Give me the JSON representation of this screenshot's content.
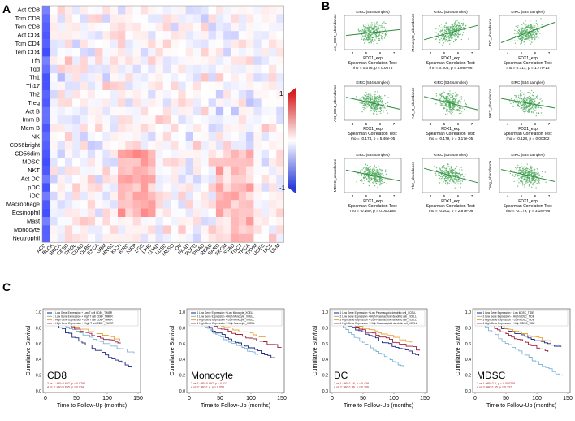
{
  "panels": {
    "a": "A",
    "b": "B",
    "c": "C"
  },
  "colors": {
    "blue": "#2a3cd8",
    "red": "#d62020",
    "green": "#2e8b3e",
    "scatter": "#4aa85a"
  },
  "heatmap": {
    "rows": [
      "Act CD8",
      "Tcm CD8",
      "Tem CD8",
      "Act CD4",
      "Tcm CD4",
      "Tem CD4",
      "Tfh",
      "Tgd",
      "Th1",
      "Th17",
      "Th2",
      "Treg",
      "Act B",
      "Imm B",
      "Mem B",
      "NK",
      "CD56bright",
      "CD56dim",
      "MDSC",
      "NKT",
      "Act DC",
      "pDC",
      "iDC",
      "Macrophage",
      "Eosinophil",
      "Mast",
      "Monocyte",
      "Neutrophil"
    ],
    "cols": [
      "ACC",
      "BLCA",
      "BRCA",
      "CESC",
      "CHOL",
      "COAD",
      "DLBC",
      "ESCA",
      "GBM",
      "HNSC",
      "KICH",
      "KIRC",
      "KIRP",
      "LGG",
      "LIHC",
      "LUAD",
      "LUSC",
      "MESO",
      "OV",
      "PAAD",
      "PCPG",
      "PRAD",
      "READ",
      "SARC",
      "SKCM",
      "STAD",
      "TGCT",
      "THCA",
      "THYM",
      "UCEC",
      "UCS",
      "UVM"
    ],
    "colorbar": {
      "max": "1",
      "min": "-1"
    }
  },
  "scatter": {
    "plots": [
      {
        "title": "KIRC (534 samples)",
        "ylabel": "Act_CD8_abundance",
        "xlabel": "FDX1_exp",
        "test": "Spearman Correlation Test:",
        "stat": "rho = 0.076, p = 0.0676",
        "slope": 0.25
      },
      {
        "title": "KIRC (534 samples)",
        "ylabel": "Monocyte_abundance",
        "xlabel": "FDX1_exp",
        "test": "Spearman Correlation Test:",
        "stat": "rho = 0.205, p = 1.98e-06",
        "slope": 0.6
      },
      {
        "title": "KIRC (534 samples)",
        "ylabel": "iDC_abundance",
        "xlabel": "FDX1_exp",
        "test": "Spearman Correlation Test:",
        "stat": "rho = 0.313, p = 1.77e-13",
        "slope": 0.85
      },
      {
        "title": "KIRC (534 samples)",
        "ylabel": "Act_CD4_abundance",
        "xlabel": "FDX1_exp",
        "test": "Spearman Correlation Test:",
        "stat": "rho = -0.174, p = 5.46e-05",
        "slope": -0.5
      },
      {
        "title": "KIRC (534 samples)",
        "ylabel": "Act_B_abundance",
        "xlabel": "FDX1_exp",
        "test": "Spearman Correlation Test:",
        "stat": "rho = -0.179, p = 3.17e-05",
        "slope": -0.55
      },
      {
        "title": "KIRC (534 samples)",
        "ylabel": "NKT_abundance",
        "xlabel": "FDX1_exp",
        "test": "Spearman Correlation Test:",
        "stat": "rho = -0.128, p = 0.00302",
        "slope": -0.4
      },
      {
        "title": "KIRC (534 samples)",
        "ylabel": "MDSC_abundance",
        "xlabel": "FDX1_exp",
        "test": "Spearman Correlation Test:",
        "stat": "rho = -0.160, p = 0.000168",
        "slope": -0.45
      },
      {
        "title": "KIRC (534 samples)",
        "ylabel": "Th2_abundance",
        "xlabel": "FDX1_exp",
        "test": "Spearman Correlation Test:",
        "stat": "rho = -0.201, p = 2.87e-06",
        "slope": -0.6
      },
      {
        "title": "KIRC (534 samples)",
        "ylabel": "Treg_abundance",
        "xlabel": "FDX1_exp",
        "test": "Spearman Correlation Test:",
        "stat": "rho = -0.179, p = 3.18e-05",
        "slope": -0.5
      }
    ],
    "xticks": [
      "4",
      "5",
      "6",
      "7"
    ]
  },
  "survival": {
    "ylabel": "Cumulative Survival",
    "xlabel": "Time to Follow-Up (months)",
    "xticks": [
      "0",
      "50",
      "100",
      "150"
    ],
    "yticks": [
      "0.0",
      "0.2",
      "0.4",
      "0.6",
      "0.8",
      "1.0"
    ],
    "line_colors": [
      "#1a237e",
      "#7fb3d8",
      "#e8a33c",
      "#9c1e3a"
    ],
    "plots": [
      {
        "name": "CD8",
        "legend": [
          "1 Low Gene Expression + Low T cell CD8+_TIMER",
          "2 Low Gene Expression + High T cell CD8+_TIMER",
          "3 High Gene Expression + Low T cell CD8+_TIMER",
          "4 High Gene Expression + High T cell CD8+_TIMER"
        ],
        "stats": [
          "2 vs 1: HR=0.657, p = 0.0793",
          "4 vs 3: HR=0.655, p = 0.034"
        ],
        "finals": [
          0.3,
          0.48,
          0.65,
          0.6
        ]
      },
      {
        "name": "Monocyte",
        "legend": [
          "1 Low Gene Expression + Low Monocyte_XCELL",
          "2 Low Gene Expression + High Monocyte_XCELL",
          "3 High Gene Expression + Low Monocyte_XCELL",
          "4 High Gene Expression + High Monocyte_XCELL"
        ],
        "stats": [
          "2 vs 1: HR=0.897, p = 0.613",
          "4 vs 3: HR=1.4, p = 0.055"
        ],
        "finals": [
          0.42,
          0.45,
          0.68,
          0.55
        ]
      },
      {
        "name": "DC",
        "legend": [
          "1 Low Gene Expression + Low Plasmacytoid dendritic cell_XCELL",
          "2 Low Gene Expression + High Plasmacytoid dendritic cell_XCELL",
          "3 High Gene Expression + Low Plasmacytoid dendritic cell_XCELL",
          "4 High Gene Expression + High Plasmacytoid dendritic cell_XCELL"
        ],
        "stats": [
          "2 vs 1: HR=1.16, p = 0.438",
          "4 vs 3: HR=1.46, p = 0.106"
        ],
        "finals": [
          0.45,
          0.3,
          0.62,
          0.52
        ]
      },
      {
        "name": "MDSC",
        "legend": [
          "1 Low Gene Expression + Low MDSC_TIDE",
          "2 Low Gene Expression + High MDSC_TIDE",
          "3 High Gene Expression + Low MDSC_TIDE",
          "4 High Gene Expression + High MDSC_TIDE"
        ],
        "stats": [
          "2 vs 1: HR=2.2, p = 0.000278",
          "4 vs 3: HR=1.55, p = 0.137"
        ],
        "finals": [
          0.55,
          0.18,
          0.62,
          0.5
        ]
      }
    ]
  }
}
